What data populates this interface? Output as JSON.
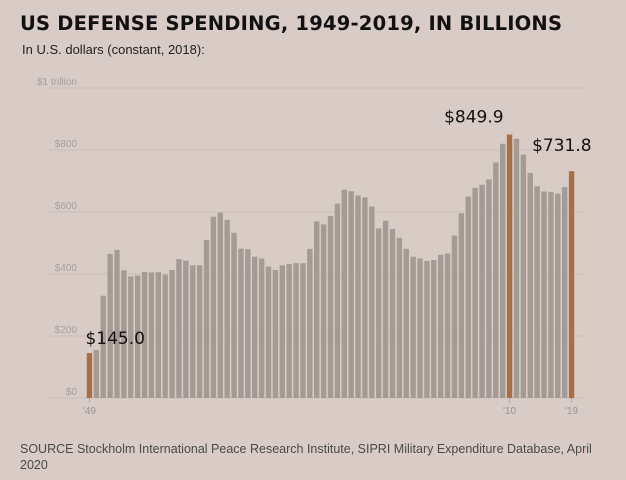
{
  "header": {
    "title": "US DEFENSE SPENDING, 1949-2019, IN BILLIONS",
    "subtitle": "In U.S. dollars (constant, 2018):"
  },
  "footer": {
    "source": "SOURCE Stockholm International Peace Research Institute, SIPRI Military Expenditure Database, April 2020"
  },
  "colors": {
    "background": "#d9ccc6",
    "bar": "#a49b95",
    "highlight": "#a86e45",
    "gridline": "#cbbdb6"
  },
  "chart_data": {
    "type": "bar",
    "title": "US DEFENSE SPENDING, 1949-2019, IN BILLIONS",
    "subtitle": "In U.S. dollars (constant, 2018):",
    "xlabel": "",
    "ylabel": "",
    "ylim": [
      0,
      1000
    ],
    "grid": true,
    "yticks": [
      {
        "value": 0,
        "label": "$0"
      },
      {
        "value": 200,
        "label": "$200"
      },
      {
        "value": 400,
        "label": "$400"
      },
      {
        "value": 600,
        "label": "$600"
      },
      {
        "value": 800,
        "label": "$800"
      },
      {
        "value": 1000,
        "label": "$1 trillion"
      }
    ],
    "xticks": [
      {
        "year": 1949,
        "label": "'49"
      },
      {
        "year": 2010,
        "label": "'10"
      },
      {
        "year": 2019,
        "label": "'19"
      }
    ],
    "categories": [
      1949,
      1950,
      1951,
      1952,
      1953,
      1954,
      1955,
      1956,
      1957,
      1958,
      1959,
      1960,
      1961,
      1962,
      1963,
      1964,
      1965,
      1966,
      1967,
      1968,
      1969,
      1970,
      1971,
      1972,
      1973,
      1974,
      1975,
      1976,
      1977,
      1978,
      1979,
      1980,
      1981,
      1982,
      1983,
      1984,
      1985,
      1986,
      1987,
      1988,
      1989,
      1990,
      1991,
      1992,
      1993,
      1994,
      1995,
      1996,
      1997,
      1998,
      1999,
      2000,
      2001,
      2002,
      2003,
      2004,
      2005,
      2006,
      2007,
      2008,
      2009,
      2010,
      2011,
      2012,
      2013,
      2014,
      2015,
      2016,
      2017,
      2018,
      2019
    ],
    "values": [
      145.0,
      155,
      330,
      465,
      478,
      412,
      392,
      395,
      407,
      405,
      406,
      398,
      413,
      448,
      443,
      428,
      428,
      510,
      585,
      598,
      575,
      533,
      482,
      480,
      456,
      450,
      424,
      413,
      428,
      432,
      435,
      435,
      481,
      570,
      560,
      587,
      627,
      672,
      667,
      653,
      647,
      618,
      547,
      572,
      545,
      517,
      481,
      456,
      450,
      442,
      445,
      462,
      466,
      524,
      596,
      650,
      678,
      688,
      705,
      760,
      820,
      849.9,
      836,
      785,
      726,
      683,
      666,
      665,
      659,
      680,
      731.8
    ],
    "highlighted": [
      1949,
      2010,
      2019
    ],
    "annotations": [
      {
        "year": 1949,
        "label": "$145.0"
      },
      {
        "year": 2010,
        "label": "$849.9"
      },
      {
        "year": 2019,
        "label": "$731.8"
      }
    ]
  }
}
